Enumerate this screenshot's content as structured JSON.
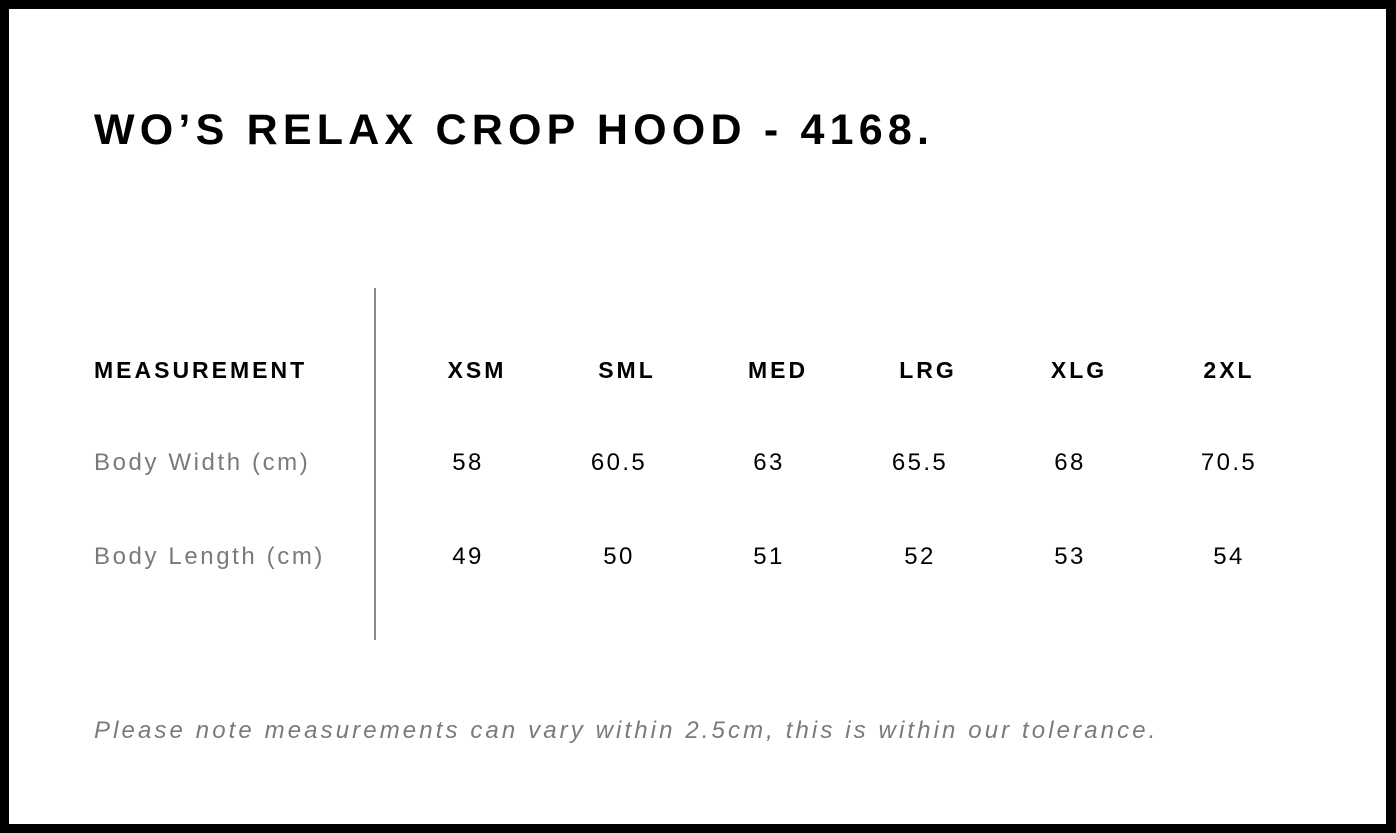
{
  "title": "WO’S RELAX CROP HOOD - 4168.",
  "table": {
    "header_label": "MEASUREMENT",
    "sizes": [
      "XSM",
      "SML",
      "MED",
      "LRG",
      "XLG",
      "2XL"
    ],
    "rows": [
      {
        "label": "Body Width (cm)",
        "values": [
          "58",
          "60.5",
          "63",
          "65.5",
          "68",
          "70.5"
        ]
      },
      {
        "label": "Body Length (cm)",
        "values": [
          "49",
          "50",
          "51",
          "52",
          "53",
          "54"
        ]
      }
    ]
  },
  "note": "Please note measurements can vary within 2.5cm, this is within our tolerance."
}
